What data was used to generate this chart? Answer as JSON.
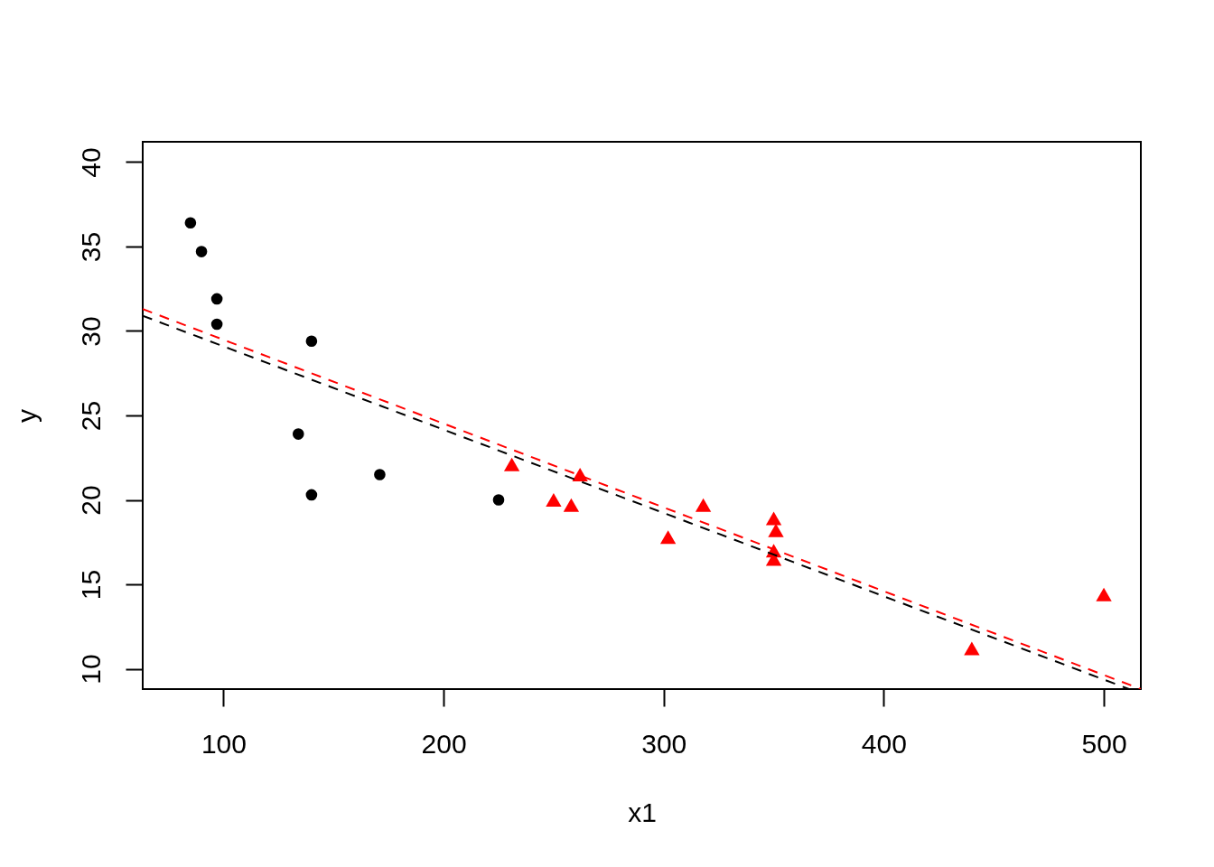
{
  "chart_data": {
    "type": "scatter",
    "xlabel": "x1",
    "ylabel": "y",
    "xlim": [
      63.3,
      516.8
    ],
    "ylim": [
      8.8,
      41.2
    ],
    "xticks": [
      100,
      200,
      300,
      400,
      500
    ],
    "yticks": [
      10,
      15,
      20,
      25,
      30,
      35,
      40
    ],
    "grid": false,
    "series": [
      {
        "color": "#000000",
        "marker": "circle",
        "x": [
          85,
          90,
          97,
          97,
          140,
          134,
          171,
          140,
          225
        ],
        "values": [
          36.4,
          34.7,
          31.9,
          30.4,
          29.4,
          23.9,
          21.5,
          20.3,
          20.0
        ]
      },
      {
        "color": "#ff0000",
        "marker": "triangle",
        "x": [
          231,
          262,
          250,
          258,
          318,
          302,
          350,
          351,
          350,
          350,
          440,
          500
        ],
        "values": [
          22.1,
          21.5,
          20.0,
          19.7,
          19.7,
          17.8,
          18.9,
          18.2,
          17.0,
          16.5,
          11.2,
          14.4
        ]
      },
      {
        "type": "line",
        "color": "#000000",
        "line_style": "dashed",
        "x": [
          63.3,
          511.4
        ],
        "values": [
          30.9,
          8.8
        ]
      },
      {
        "type": "line",
        "color": "#ff0000",
        "line_style": "dashed",
        "x": [
          63.3,
          516.8
        ],
        "values": [
          31.3,
          8.8
        ]
      }
    ]
  }
}
